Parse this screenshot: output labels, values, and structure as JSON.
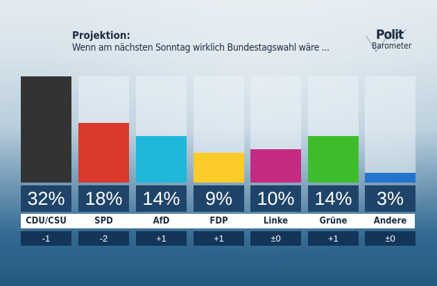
{
  "header": {
    "title": "Projektion:",
    "subtitle": "Wenn am nächsten Sonntag wirklich Bundestagswahl wäre ...",
    "logo_text": "Polit Barometer",
    "logo_line1": "Polit",
    "logo_line2": "Barometer"
  },
  "chart_data": {
    "type": "bar",
    "categories": [
      "CDU/CSU",
      "SPD",
      "AfD",
      "FDP",
      "Linke",
      "Grüne",
      "Andere"
    ],
    "values": [
      32,
      18,
      14,
      9,
      10,
      14,
      3
    ],
    "value_labels": [
      "32%",
      "18%",
      "14%",
      "9%",
      "10%",
      "14%",
      "3%"
    ],
    "changes": [
      "-1",
      "-2",
      "+1",
      "+1",
      "±0",
      "+1",
      "±0"
    ],
    "colors": [
      "#333333",
      "#d93a2b",
      "#1fb8d9",
      "#fccb2a",
      "#c52a82",
      "#3dbd2b",
      "#2474cc"
    ],
    "unit": "%",
    "ylim": [
      0,
      32
    ],
    "grid": false
  }
}
